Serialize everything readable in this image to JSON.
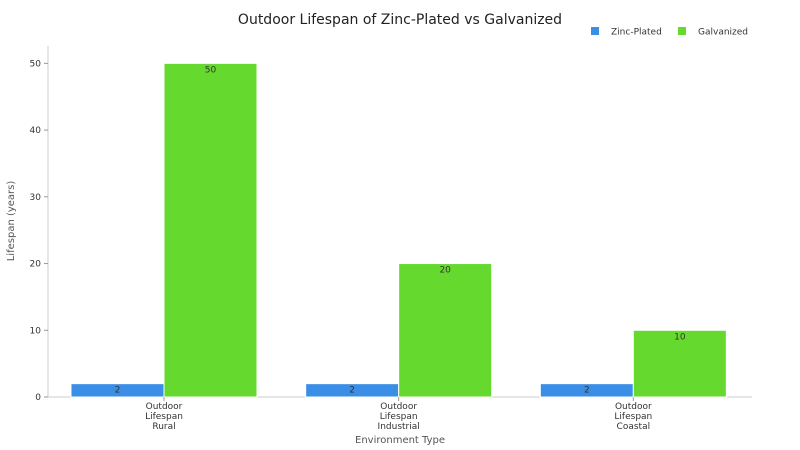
{
  "chart_data": {
    "type": "bar",
    "title": "Outdoor Lifespan of Zinc-Plated vs Galvanized",
    "xlabel": "Environment Type",
    "ylabel": "Lifespan (years)",
    "categories": [
      [
        "Outdoor",
        "Lifespan",
        "Rural"
      ],
      [
        "Outdoor",
        "Lifespan",
        "Industrial"
      ],
      [
        "Outdoor",
        "Lifespan",
        "Coastal"
      ]
    ],
    "series": [
      {
        "name": "Zinc-Plated",
        "color": "#3a8ee6",
        "values": [
          2,
          2,
          2
        ]
      },
      {
        "name": "Galvanized",
        "color": "#66d92e",
        "values": [
          50,
          20,
          10
        ]
      }
    ],
    "ylim": [
      0,
      52
    ],
    "yticks": [
      0,
      10,
      20,
      30,
      40,
      50
    ],
    "grid": false,
    "legend": "top-right",
    "data_labels": true
  }
}
